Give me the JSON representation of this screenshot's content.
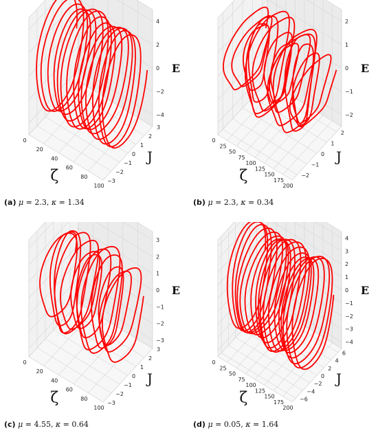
{
  "chart_data": [
    {
      "type": "line",
      "panel_id": "a",
      "projection": "3d",
      "caption": {
        "tag": "(a)",
        "mu": "2.3",
        "kappa": "1.34"
      },
      "xlabel": "ζ",
      "ylabel": "J",
      "zlabel": "E",
      "xlim": [
        0,
        100
      ],
      "ylim": [
        -3,
        3
      ],
      "zlim": [
        -5,
        5
      ],
      "xticks": [
        "0",
        "20",
        "40",
        "60",
        "80",
        "100"
      ],
      "yticks": [
        "−3",
        "−2",
        "−1",
        "0",
        "1",
        "2",
        "3"
      ],
      "zticks": [
        "−4",
        "−2",
        "0",
        "2",
        "4"
      ],
      "series": [
        {
          "color": "#ff0000",
          "loops": 14,
          "amplitude_y": 2.7,
          "amplitude_z": 4.8,
          "irregularity": 0.12
        }
      ]
    },
    {
      "type": "line",
      "panel_id": "b",
      "projection": "3d",
      "caption": {
        "tag": "(b)",
        "mu": "2.3",
        "kappa": "0.34"
      },
      "xlabel": "ζ",
      "ylabel": "J",
      "zlabel": "E",
      "xlim": [
        0,
        200
      ],
      "ylim": [
        -2.5,
        2.5
      ],
      "zlim": [
        -2.5,
        2.5
      ],
      "xticks": [
        "0",
        "25",
        "50",
        "75",
        "100",
        "125",
        "150",
        "175",
        "200"
      ],
      "yticks": [
        "−2",
        "−1",
        "0",
        "1",
        "2"
      ],
      "zticks": [
        "−2",
        "−1",
        "0",
        "1",
        "2"
      ],
      "series": [
        {
          "color": "#ff0000",
          "loops": 16,
          "amplitude_y": 2.2,
          "amplitude_z": 2.3,
          "irregularity": 0.45
        }
      ]
    },
    {
      "type": "line",
      "panel_id": "c",
      "projection": "3d",
      "caption": {
        "tag": "(c)",
        "mu": "4.55",
        "kappa": "0.64"
      },
      "xlabel": "ζ",
      "ylabel": "J",
      "zlabel": "E",
      "xlim": [
        0,
        100
      ],
      "ylim": [
        -3,
        3
      ],
      "zlim": [
        -3.5,
        3.5
      ],
      "xticks": [
        "0",
        "20",
        "40",
        "60",
        "80",
        "100"
      ],
      "yticks": [
        "−3",
        "−2",
        "−1",
        "0",
        "1",
        "2",
        "3"
      ],
      "zticks": [
        "−3",
        "−2",
        "−1",
        "0",
        "1",
        "2",
        "3"
      ],
      "series": [
        {
          "color": "#ff0000",
          "loops": 13,
          "amplitude_y": 2.4,
          "amplitude_z": 3.2,
          "irregularity": 0.3
        }
      ]
    },
    {
      "type": "line",
      "panel_id": "d",
      "projection": "3d",
      "caption": {
        "tag": "(d)",
        "mu": "0.05",
        "kappa": "1.64"
      },
      "xlabel": "ζ",
      "ylabel": "J",
      "zlabel": "E",
      "xlim": [
        0,
        200
      ],
      "ylim": [
        -7,
        7
      ],
      "zlim": [
        -4.5,
        4.5
      ],
      "xticks": [
        "0",
        "25",
        "50",
        "75",
        "100",
        "125",
        "150",
        "175",
        "200"
      ],
      "yticks": [
        "−6",
        "−4",
        "−2",
        "0",
        "2",
        "4",
        "6"
      ],
      "zticks": [
        "−4",
        "−3",
        "−2",
        "−1",
        "0",
        "1",
        "2",
        "3",
        "4"
      ],
      "series": [
        {
          "color": "#ff0000",
          "loops": 18,
          "amplitude_y": 6.2,
          "amplitude_z": 4.1,
          "irregularity": 0.15
        }
      ]
    }
  ]
}
